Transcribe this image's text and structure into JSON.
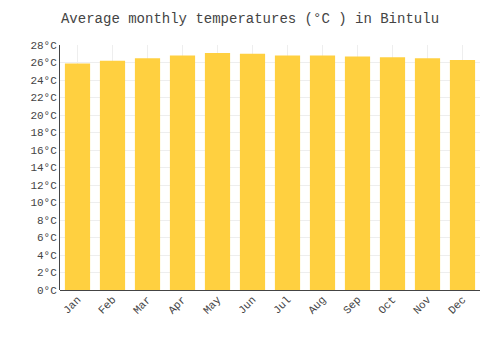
{
  "chart_data": {
    "type": "bar",
    "title": "Average monthly temperatures (°C ) in Bintulu",
    "categories": [
      "Jan",
      "Feb",
      "Mar",
      "Apr",
      "May",
      "Jun",
      "Jul",
      "Aug",
      "Sep",
      "Oct",
      "Nov",
      "Dec"
    ],
    "values": [
      25.9,
      26.2,
      26.5,
      26.8,
      27.1,
      27.0,
      26.8,
      26.8,
      26.7,
      26.6,
      26.5,
      26.3
    ],
    "color": "#FFD040",
    "ylim": [
      0,
      28
    ],
    "yticks": [
      {
        "value": 0,
        "label": "0°C"
      },
      {
        "value": 2,
        "label": "2°C"
      },
      {
        "value": 4,
        "label": "4°C"
      },
      {
        "value": 6,
        "label": "6°C"
      },
      {
        "value": 8,
        "label": "8°C"
      },
      {
        "value": 10,
        "label": "10°C"
      },
      {
        "value": 12,
        "label": "12°C"
      },
      {
        "value": 14,
        "label": "14°C"
      },
      {
        "value": 16,
        "label": "16°C"
      },
      {
        "value": 18,
        "label": "18°C"
      },
      {
        "value": 20,
        "label": "20°C"
      },
      {
        "value": 22,
        "label": "22°C"
      },
      {
        "value": 24,
        "label": "24°C"
      },
      {
        "value": 26,
        "label": "26°C"
      },
      {
        "value": 28,
        "label": "28°C"
      }
    ],
    "grid": true
  }
}
